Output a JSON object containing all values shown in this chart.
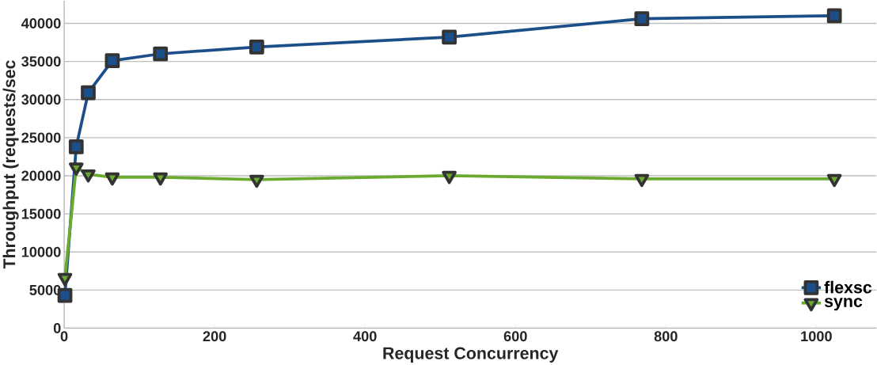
{
  "chart_data": {
    "type": "line",
    "xlabel": "Request Concurrency",
    "ylabel": "Throughput (requests/sec",
    "xlim": [
      0,
      1080
    ],
    "xticks": [
      0,
      200,
      400,
      600,
      800,
      1000
    ],
    "ylim": [
      0,
      43000
    ],
    "yticks": [
      0,
      5000,
      10000,
      15000,
      20000,
      25000,
      30000,
      35000,
      40000
    ],
    "grid": "y",
    "legend": "bottom right",
    "line_style": "solid",
    "series": [
      {
        "name": "flexsc",
        "color": "#1c4f8a",
        "marker": "square",
        "x": [
          1,
          16,
          32,
          64,
          128,
          256,
          512,
          768,
          1024
        ],
        "values": [
          4300,
          23800,
          30900,
          35100,
          36000,
          36900,
          38200,
          40600,
          41000
        ]
      },
      {
        "name": "sync",
        "color": "#6aaa2e",
        "marker": "triangle",
        "x": [
          1,
          16,
          32,
          64,
          128,
          256,
          512,
          768,
          1024
        ],
        "values": [
          6600,
          21100,
          20200,
          19800,
          19800,
          19500,
          20000,
          19600,
          19600
        ]
      }
    ]
  }
}
